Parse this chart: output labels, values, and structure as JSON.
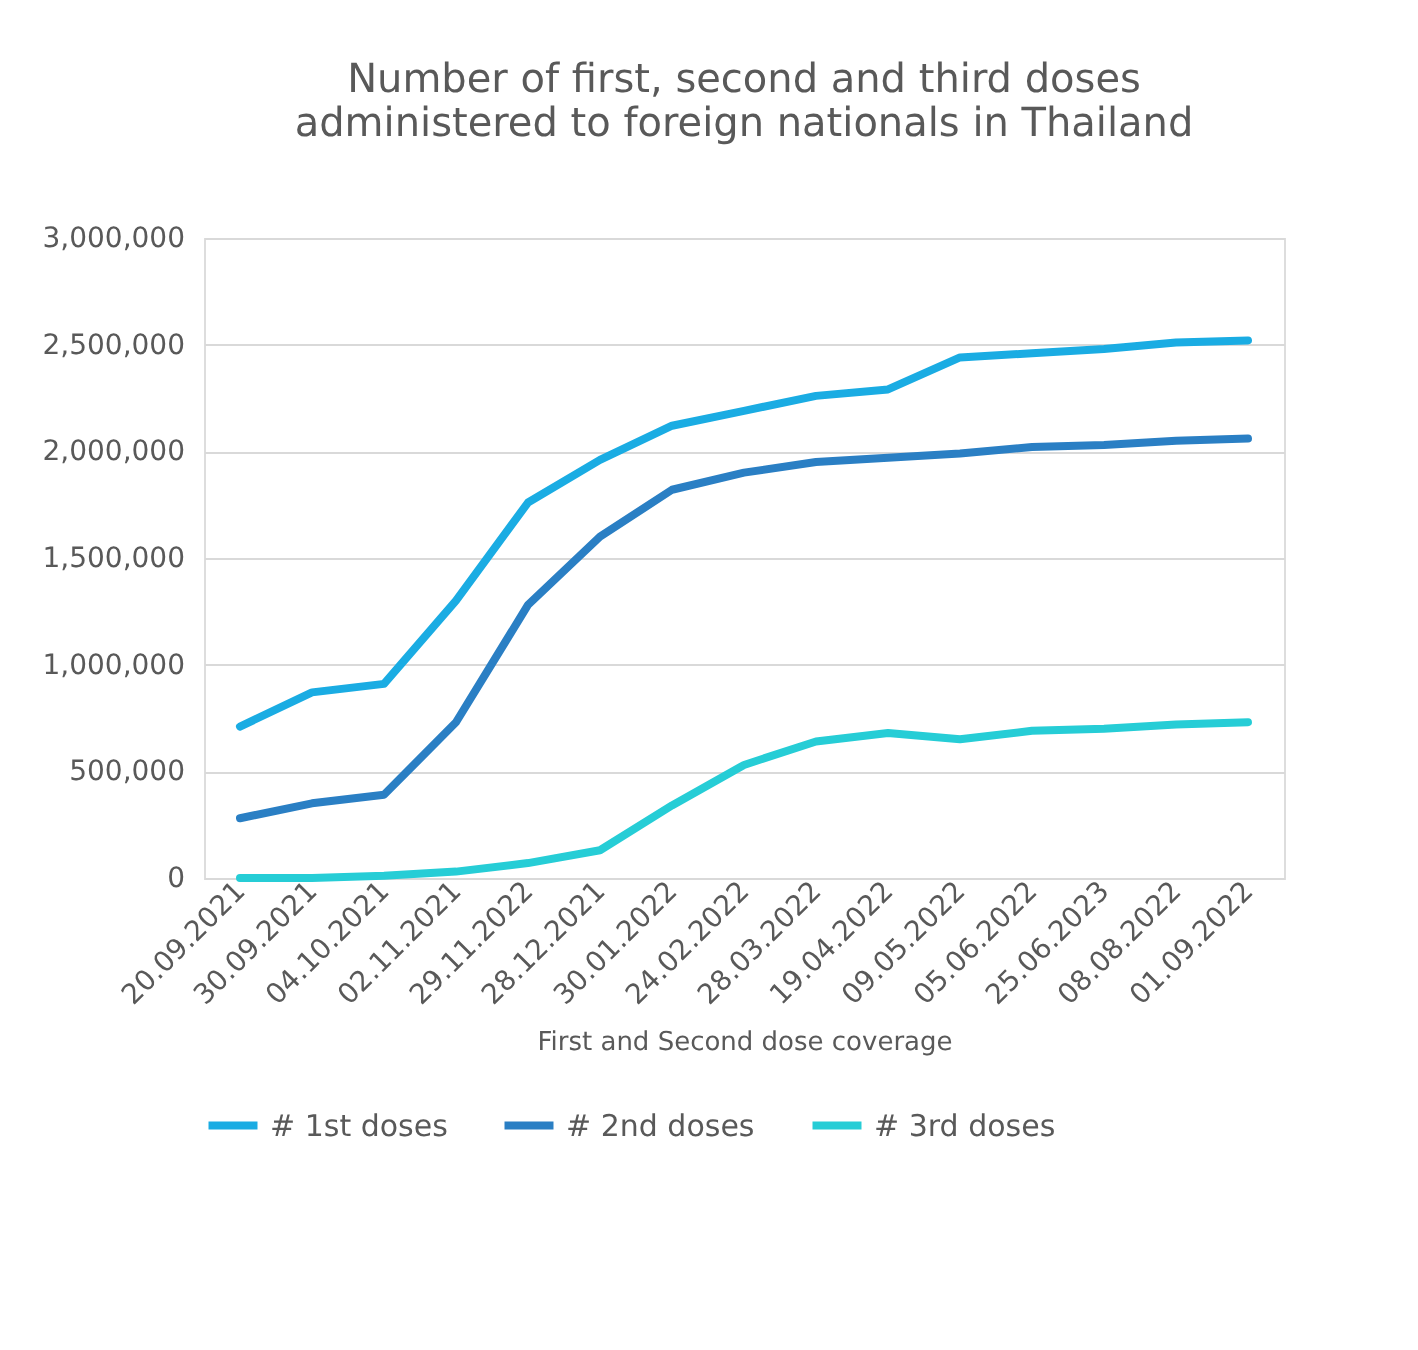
{
  "chart_data": {
    "type": "line",
    "title": "Number of first, second and third doses\nadministered to foreign nationals in Thailand",
    "xlabel": "First and Second dose coverage",
    "categories": [
      "20.09.2021",
      "30.09.2021",
      "04.10.2021",
      "02.11.2021",
      "29.11.2022",
      "28.12.2021",
      "30.01.2022",
      "24.02.2022",
      "28.03.2022",
      "19.04.2022",
      "09.05.2022",
      "05.06.2022",
      "25.06.2023",
      "08.08.2022",
      "01.09.2022"
    ],
    "series": [
      {
        "name": "# 1st doses",
        "color": "#1aace3",
        "values": [
          710000,
          870000,
          910000,
          1300000,
          1760000,
          1960000,
          2120000,
          2190000,
          2260000,
          2290000,
          2440000,
          2460000,
          2480000,
          2510000,
          2520000
        ]
      },
      {
        "name": "# 2nd doses",
        "color": "#2a7fc4",
        "values": [
          280000,
          350000,
          390000,
          730000,
          1280000,
          1600000,
          1820000,
          1900000,
          1950000,
          1970000,
          1990000,
          2020000,
          2030000,
          2050000,
          2060000
        ]
      },
      {
        "name": "# 3rd doses",
        "color": "#26cdd6",
        "values": [
          0,
          0,
          10000,
          30000,
          70000,
          130000,
          340000,
          530000,
          640000,
          680000,
          650000,
          690000,
          700000,
          720000,
          730000
        ]
      }
    ],
    "ylim": [
      0,
      3000000
    ],
    "yticks": [
      0,
      {
        "value": 500000,
        "label": "500,000"
      },
      {
        "value": 1000000,
        "label": "1,000,000"
      },
      {
        "value": 1500000,
        "label": "1,500,000"
      },
      {
        "value": 2000000,
        "label": "2,000,000"
      },
      {
        "value": 2500000,
        "label": "2,500,000"
      },
      {
        "value": 3000000,
        "label": "3,000,000"
      }
    ],
    "grid": "y",
    "legend": "bottom",
    "marker": "none",
    "line_style": "solid"
  }
}
